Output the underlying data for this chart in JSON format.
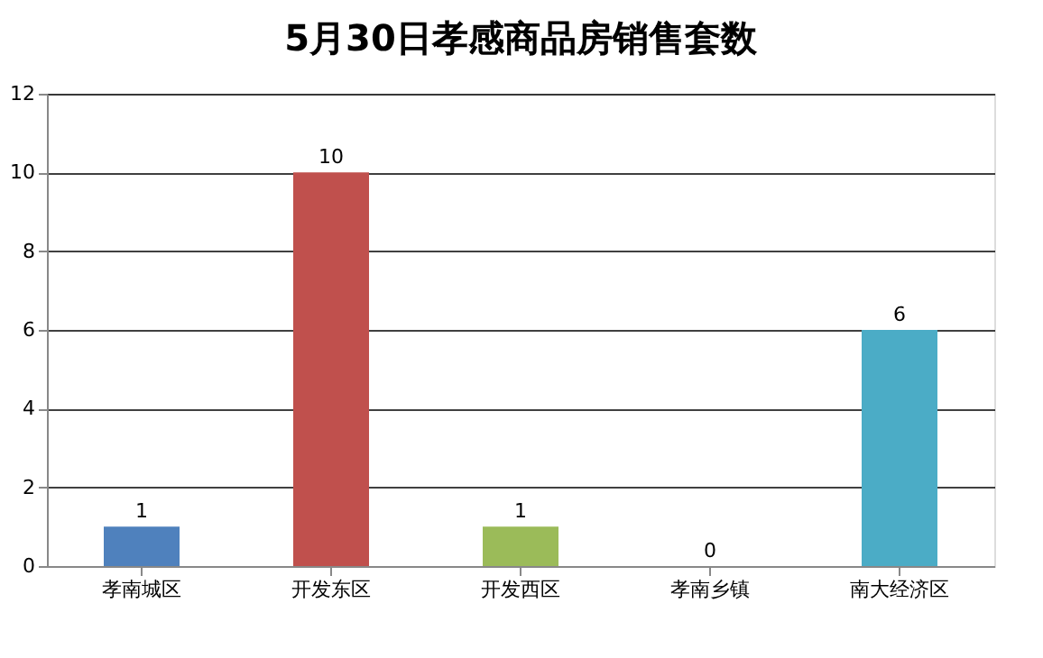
{
  "chart_data": {
    "type": "bar",
    "title": "5月30日孝感商品房销售套数",
    "categories": [
      "孝南城区",
      "开发东区",
      "开发西区",
      "孝南乡镇",
      "南大经济区"
    ],
    "values": [
      1,
      10,
      1,
      0,
      6
    ],
    "colors": [
      "#4f81bd",
      "#c0504d",
      "#9bbb59",
      "#8064a2",
      "#4bacc6"
    ],
    "ylim": [
      0,
      12
    ],
    "yticks": [
      0,
      2,
      4,
      6,
      8,
      10,
      12
    ],
    "grid": "y",
    "data_labels": true
  }
}
